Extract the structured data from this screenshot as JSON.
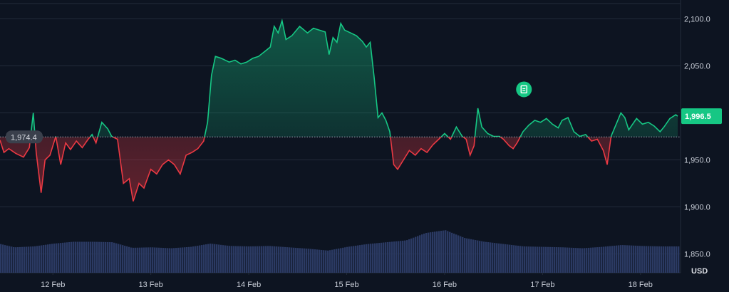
{
  "chart_data": {
    "type": "area",
    "baseline_value": 1974.4,
    "baseline_label": "1,974.4",
    "last_value": 1996.5,
    "last_label": "1,996.5",
    "currency": "USD",
    "ylim": [
      1830,
      2120
    ],
    "y_ticks": [
      {
        "value": 2100,
        "label": "2,100.0"
      },
      {
        "value": 2050,
        "label": "2,050.0"
      },
      {
        "value": 2000,
        "label": "2,000.0"
      },
      {
        "value": 1950,
        "label": "1,950.0"
      },
      {
        "value": 1900,
        "label": "1,900.0"
      },
      {
        "value": 1850,
        "label": "1,850.0"
      }
    ],
    "x_ticks": [
      {
        "x": 1.0,
        "label": "12 Feb"
      },
      {
        "x": 2.0,
        "label": "13 Feb"
      },
      {
        "x": 3.0,
        "label": "14 Feb"
      },
      {
        "x": 4.0,
        "label": "15 Feb"
      },
      {
        "x": 5.0,
        "label": "16 Feb"
      },
      {
        "x": 6.0,
        "label": "17 Feb"
      },
      {
        "x": 7.0,
        "label": "18 Feb"
      }
    ],
    "xlim": [
      0.46,
      7.38
    ],
    "price": [
      [
        0.46,
        1971
      ],
      [
        0.5,
        1958
      ],
      [
        0.55,
        1962
      ],
      [
        0.62,
        1957
      ],
      [
        0.7,
        1953
      ],
      [
        0.76,
        1963
      ],
      [
        0.8,
        2000
      ],
      [
        0.83,
        1958
      ],
      [
        0.88,
        1915
      ],
      [
        0.92,
        1950
      ],
      [
        0.97,
        1955
      ],
      [
        1.03,
        1975
      ],
      [
        1.08,
        1945
      ],
      [
        1.13,
        1968
      ],
      [
        1.18,
        1961
      ],
      [
        1.24,
        1970
      ],
      [
        1.3,
        1963
      ],
      [
        1.36,
        1972
      ],
      [
        1.4,
        1977
      ],
      [
        1.44,
        1968
      ],
      [
        1.5,
        1990
      ],
      [
        1.56,
        1983
      ],
      [
        1.6,
        1975
      ],
      [
        1.66,
        1972
      ],
      [
        1.72,
        1925
      ],
      [
        1.78,
        1930
      ],
      [
        1.82,
        1906
      ],
      [
        1.88,
        1925
      ],
      [
        1.93,
        1920
      ],
      [
        2.0,
        1940
      ],
      [
        2.06,
        1935
      ],
      [
        2.12,
        1945
      ],
      [
        2.18,
        1950
      ],
      [
        2.24,
        1945
      ],
      [
        2.3,
        1935
      ],
      [
        2.36,
        1955
      ],
      [
        2.42,
        1958
      ],
      [
        2.48,
        1962
      ],
      [
        2.54,
        1970
      ],
      [
        2.58,
        1990
      ],
      [
        2.62,
        2040
      ],
      [
        2.66,
        2060
      ],
      [
        2.72,
        2058
      ],
      [
        2.8,
        2054
      ],
      [
        2.86,
        2056
      ],
      [
        2.92,
        2052
      ],
      [
        2.98,
        2054
      ],
      [
        3.04,
        2058
      ],
      [
        3.1,
        2060
      ],
      [
        3.16,
        2065
      ],
      [
        3.22,
        2070
      ],
      [
        3.26,
        2092
      ],
      [
        3.3,
        2085
      ],
      [
        3.34,
        2098
      ],
      [
        3.38,
        2078
      ],
      [
        3.44,
        2082
      ],
      [
        3.52,
        2092
      ],
      [
        3.6,
        2085
      ],
      [
        3.66,
        2090
      ],
      [
        3.72,
        2088
      ],
      [
        3.78,
        2086
      ],
      [
        3.82,
        2062
      ],
      [
        3.86,
        2080
      ],
      [
        3.9,
        2075
      ],
      [
        3.94,
        2095
      ],
      [
        3.98,
        2088
      ],
      [
        4.04,
        2085
      ],
      [
        4.1,
        2082
      ],
      [
        4.16,
        2076
      ],
      [
        4.2,
        2070
      ],
      [
        4.24,
        2075
      ],
      [
        4.28,
        2038
      ],
      [
        4.32,
        1995
      ],
      [
        4.36,
        2000
      ],
      [
        4.4,
        1992
      ],
      [
        4.44,
        1980
      ],
      [
        4.48,
        1945
      ],
      [
        4.52,
        1940
      ],
      [
        4.58,
        1950
      ],
      [
        4.64,
        1960
      ],
      [
        4.7,
        1955
      ],
      [
        4.76,
        1962
      ],
      [
        4.82,
        1958
      ],
      [
        4.88,
        1966
      ],
      [
        4.94,
        1972
      ],
      [
        5.0,
        1978
      ],
      [
        5.06,
        1972
      ],
      [
        5.12,
        1985
      ],
      [
        5.18,
        1975
      ],
      [
        5.22,
        1972
      ],
      [
        5.26,
        1955
      ],
      [
        5.3,
        1965
      ],
      [
        5.34,
        2005
      ],
      [
        5.38,
        1985
      ],
      [
        5.44,
        1978
      ],
      [
        5.5,
        1975
      ],
      [
        5.56,
        1975
      ],
      [
        5.6,
        1972
      ],
      [
        5.66,
        1965
      ],
      [
        5.7,
        1962
      ],
      [
        5.74,
        1968
      ],
      [
        5.8,
        1980
      ],
      [
        5.86,
        1987
      ],
      [
        5.92,
        1992
      ],
      [
        5.98,
        1990
      ],
      [
        6.04,
        1994
      ],
      [
        6.1,
        1988
      ],
      [
        6.16,
        1984
      ],
      [
        6.2,
        1992
      ],
      [
        6.26,
        1995
      ],
      [
        6.32,
        1980
      ],
      [
        6.38,
        1975
      ],
      [
        6.44,
        1977
      ],
      [
        6.5,
        1970
      ],
      [
        6.56,
        1972
      ],
      [
        6.62,
        1960
      ],
      [
        6.66,
        1945
      ],
      [
        6.7,
        1975
      ],
      [
        6.76,
        1990
      ],
      [
        6.8,
        2000
      ],
      [
        6.84,
        1995
      ],
      [
        6.88,
        1982
      ],
      [
        6.92,
        1988
      ],
      [
        6.96,
        1994
      ],
      [
        7.02,
        1988
      ],
      [
        7.08,
        1990
      ],
      [
        7.14,
        1986
      ],
      [
        7.2,
        1980
      ],
      [
        7.24,
        1985
      ],
      [
        7.3,
        1994
      ],
      [
        7.36,
        1998
      ],
      [
        7.38,
        1996.5
      ]
    ],
    "volume": [
      [
        0.46,
        0.62
      ],
      [
        0.6,
        0.55
      ],
      [
        0.8,
        0.57
      ],
      [
        1.0,
        0.63
      ],
      [
        1.2,
        0.67
      ],
      [
        1.4,
        0.67
      ],
      [
        1.6,
        0.66
      ],
      [
        1.8,
        0.54
      ],
      [
        2.0,
        0.55
      ],
      [
        2.2,
        0.53
      ],
      [
        2.4,
        0.56
      ],
      [
        2.6,
        0.63
      ],
      [
        2.8,
        0.58
      ],
      [
        3.0,
        0.57
      ],
      [
        3.2,
        0.58
      ],
      [
        3.4,
        0.55
      ],
      [
        3.6,
        0.52
      ],
      [
        3.8,
        0.48
      ],
      [
        4.0,
        0.56
      ],
      [
        4.2,
        0.62
      ],
      [
        4.4,
        0.66
      ],
      [
        4.6,
        0.7
      ],
      [
        4.8,
        0.86
      ],
      [
        5.0,
        0.92
      ],
      [
        5.2,
        0.75
      ],
      [
        5.4,
        0.67
      ],
      [
        5.6,
        0.62
      ],
      [
        5.8,
        0.57
      ],
      [
        6.0,
        0.56
      ],
      [
        6.2,
        0.55
      ],
      [
        6.4,
        0.53
      ],
      [
        6.6,
        0.56
      ],
      [
        6.8,
        0.6
      ],
      [
        7.0,
        0.58
      ],
      [
        7.2,
        0.57
      ],
      [
        7.38,
        0.57
      ]
    ],
    "annotation": {
      "x": 5.81,
      "y": 2025,
      "icon": "document-icon"
    },
    "colors": {
      "up": "#16c784",
      "down": "#ea3943",
      "volume": "#2b3a63",
      "badge": "#16c784",
      "base_badge": "#3a404c",
      "grid": "#222b3a",
      "background": "#0d1421"
    }
  }
}
